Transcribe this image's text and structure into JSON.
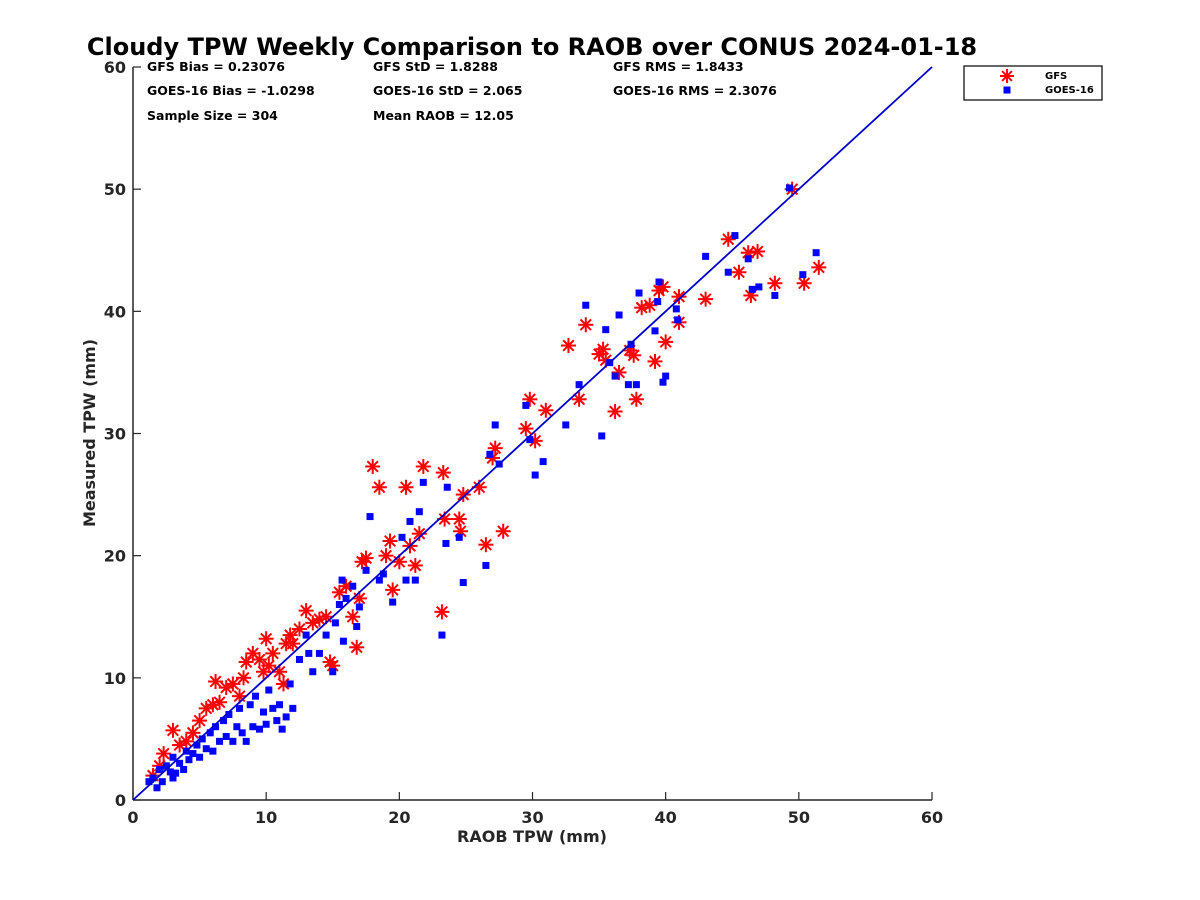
{
  "chart_data": {
    "type": "scatter",
    "title": "Cloudy TPW Weekly Comparison to RAOB over CONUS 2024-01-18",
    "xlabel": "RAOB TPW (mm)",
    "ylabel": "Measured TPW (mm)",
    "xlim": [
      0,
      60
    ],
    "ylim": [
      0,
      60
    ],
    "xticks": [
      "0",
      "10",
      "20",
      "30",
      "40",
      "50",
      "60"
    ],
    "yticks": [
      "0",
      "10",
      "20",
      "30",
      "40",
      "50",
      "60"
    ],
    "grid": false,
    "legend_position": "outside top-right",
    "stats": {
      "gfs_bias": "GFS Bias = 0.23076",
      "gfs_std": "GFS StD = 1.8288",
      "gfs_rms": "GFS RMS = 1.8433",
      "goes_bias": "GOES-16 Bias = -1.0298",
      "goes_std": "GOES-16 StD = 2.065",
      "goes_rms": "GOES-16 RMS = 2.3076",
      "sample_size": "Sample Size = 304",
      "mean_raob": "Mean RAOB = 12.05"
    },
    "reference_line": {
      "x": [
        0,
        60
      ],
      "y": [
        0,
        60
      ],
      "color": "#0000cc"
    },
    "series": [
      {
        "name": "GFS",
        "marker": "asterisk",
        "color": "#ff0000",
        "points": [
          [
            1.5,
            2
          ],
          [
            2,
            2.8
          ],
          [
            2.3,
            3.8
          ],
          [
            3,
            5.7
          ],
          [
            3.5,
            4.5
          ],
          [
            4,
            4.8
          ],
          [
            4.5,
            5.5
          ],
          [
            5,
            6.5
          ],
          [
            5.5,
            7.5
          ],
          [
            6,
            7.8
          ],
          [
            6.2,
            9.7
          ],
          [
            6.5,
            8
          ],
          [
            7,
            9.2
          ],
          [
            7.5,
            9.5
          ],
          [
            8,
            8.5
          ],
          [
            8.3,
            10
          ],
          [
            8.5,
            11.3
          ],
          [
            9,
            12
          ],
          [
            9.5,
            11.5
          ],
          [
            9.8,
            10.5
          ],
          [
            10,
            13.2
          ],
          [
            10.2,
            11
          ],
          [
            10.5,
            12
          ],
          [
            11,
            10.5
          ],
          [
            11.3,
            9.5
          ],
          [
            11.5,
            12.8
          ],
          [
            11.8,
            13.5
          ],
          [
            12,
            12.8
          ],
          [
            12.5,
            14
          ],
          [
            13,
            15.5
          ],
          [
            13.5,
            14.5
          ],
          [
            14,
            14.8
          ],
          [
            14.5,
            15
          ],
          [
            14.8,
            11.3
          ],
          [
            15,
            11
          ],
          [
            15.5,
            17
          ],
          [
            16,
            17.5
          ],
          [
            16.5,
            15
          ],
          [
            17,
            16.5
          ],
          [
            16.8,
            12.5
          ],
          [
            17.2,
            19.5
          ],
          [
            17.5,
            19.8
          ],
          [
            18,
            27.3
          ],
          [
            18.5,
            25.6
          ],
          [
            19,
            20
          ],
          [
            19.3,
            21.2
          ],
          [
            19.5,
            17.2
          ],
          [
            20,
            19.5
          ],
          [
            20.5,
            25.6
          ],
          [
            20.8,
            20.8
          ],
          [
            21.2,
            19.2
          ],
          [
            21.5,
            21.8
          ],
          [
            21.8,
            27.3
          ],
          [
            23.2,
            15.4
          ],
          [
            23.3,
            26.8
          ],
          [
            23.4,
            23
          ],
          [
            24.5,
            23
          ],
          [
            24.6,
            22
          ],
          [
            24.8,
            25
          ],
          [
            26,
            25.6
          ],
          [
            26.5,
            20.9
          ],
          [
            27,
            28
          ],
          [
            27.2,
            28.8
          ],
          [
            27.8,
            22
          ],
          [
            29.5,
            30.4
          ],
          [
            29.8,
            32.8
          ],
          [
            30.2,
            29.4
          ],
          [
            31,
            31.9
          ],
          [
            32.7,
            37.2
          ],
          [
            33.5,
            32.8
          ],
          [
            34,
            38.9
          ],
          [
            35,
            36.5
          ],
          [
            35.3,
            36.9
          ],
          [
            35.5,
            36
          ],
          [
            36.2,
            31.8
          ],
          [
            36.5,
            35
          ],
          [
            37.3,
            36.8
          ],
          [
            37.6,
            36.4
          ],
          [
            37.8,
            32.8
          ],
          [
            38.2,
            40.3
          ],
          [
            38.8,
            40.5
          ],
          [
            39.2,
            35.9
          ],
          [
            39.5,
            41.7
          ],
          [
            39.8,
            42
          ],
          [
            40,
            37.5
          ],
          [
            41,
            41.2
          ],
          [
            41,
            39.1
          ],
          [
            43,
            41
          ],
          [
            44.7,
            45.9
          ],
          [
            45.5,
            43.2
          ],
          [
            46.2,
            44.8
          ],
          [
            46.4,
            41.3
          ],
          [
            46.9,
            44.9
          ],
          [
            48.2,
            42.3
          ],
          [
            49.5,
            50
          ],
          [
            50.4,
            42.3
          ],
          [
            51.5,
            43.6
          ]
        ]
      },
      {
        "name": "GOES-16",
        "marker": "square",
        "color": "#0000ff",
        "points": [
          [
            1.2,
            1.5
          ],
          [
            1.5,
            1.8
          ],
          [
            1.8,
            1
          ],
          [
            2,
            2.5
          ],
          [
            2.2,
            1.5
          ],
          [
            2.5,
            2.8
          ],
          [
            2.8,
            2.3
          ],
          [
            3,
            1.8
          ],
          [
            3,
            3.5
          ],
          [
            3.2,
            2.2
          ],
          [
            3.5,
            3
          ],
          [
            3.8,
            2.5
          ],
          [
            4,
            4
          ],
          [
            4.2,
            3.3
          ],
          [
            4.5,
            3.8
          ],
          [
            4.8,
            4.5
          ],
          [
            5,
            3.5
          ],
          [
            5.2,
            5
          ],
          [
            5.5,
            4.2
          ],
          [
            5.8,
            5.5
          ],
          [
            6,
            4
          ],
          [
            6.2,
            6
          ],
          [
            6.5,
            4.8
          ],
          [
            6.8,
            6.5
          ],
          [
            7,
            5.2
          ],
          [
            7.2,
            7
          ],
          [
            7.5,
            4.8
          ],
          [
            7.8,
            6
          ],
          [
            8,
            7.5
          ],
          [
            8.2,
            5.5
          ],
          [
            8.5,
            4.8
          ],
          [
            8.8,
            7.8
          ],
          [
            9,
            6
          ],
          [
            9.2,
            8.5
          ],
          [
            9.5,
            5.8
          ],
          [
            9.8,
            7.2
          ],
          [
            10,
            6.2
          ],
          [
            10.2,
            9
          ],
          [
            10.5,
            7.5
          ],
          [
            10.8,
            6.5
          ],
          [
            11,
            7.8
          ],
          [
            11.2,
            5.8
          ],
          [
            11.5,
            6.8
          ],
          [
            11.8,
            9.5
          ],
          [
            12,
            7.5
          ],
          [
            12.5,
            11.5
          ],
          [
            13,
            13.5
          ],
          [
            13.2,
            12
          ],
          [
            13.5,
            10.5
          ],
          [
            14,
            12
          ],
          [
            14.5,
            13.5
          ],
          [
            15,
            10.5
          ],
          [
            15.2,
            14.5
          ],
          [
            15.5,
            16
          ],
          [
            15.7,
            18
          ],
          [
            15.8,
            13
          ],
          [
            16,
            16.5
          ],
          [
            16.5,
            17.5
          ],
          [
            16.8,
            14.2
          ],
          [
            17,
            15.8
          ],
          [
            17.5,
            18.8
          ],
          [
            17.8,
            23.2
          ],
          [
            18.5,
            18
          ],
          [
            18.8,
            18.5
          ],
          [
            19.5,
            16.2
          ],
          [
            20.2,
            21.5
          ],
          [
            20.5,
            18
          ],
          [
            20.8,
            22.8
          ],
          [
            21.2,
            18
          ],
          [
            21.5,
            23.6
          ],
          [
            21.8,
            26
          ],
          [
            23.2,
            13.5
          ],
          [
            23.5,
            21
          ],
          [
            23.6,
            25.6
          ],
          [
            24.5,
            21.5
          ],
          [
            24.8,
            17.8
          ],
          [
            26.5,
            19.2
          ],
          [
            26.8,
            28.3
          ],
          [
            27.2,
            30.7
          ],
          [
            27.5,
            27.5
          ],
          [
            29.5,
            32.3
          ],
          [
            29.8,
            29.5
          ],
          [
            30.2,
            26.6
          ],
          [
            30.8,
            27.7
          ],
          [
            32.5,
            30.7
          ],
          [
            33.5,
            34
          ],
          [
            34,
            40.5
          ],
          [
            35.2,
            29.8
          ],
          [
            35.5,
            38.5
          ],
          [
            35.8,
            35.8
          ],
          [
            36.2,
            34.7
          ],
          [
            36.5,
            39.7
          ],
          [
            37.2,
            34
          ],
          [
            37.4,
            37.3
          ],
          [
            37.8,
            34
          ],
          [
            38,
            41.5
          ],
          [
            39.2,
            38.4
          ],
          [
            39.4,
            40.8
          ],
          [
            39.5,
            42.4
          ],
          [
            39.8,
            34.2
          ],
          [
            40,
            34.7
          ],
          [
            40.8,
            40.2
          ],
          [
            40.9,
            39.3
          ],
          [
            43,
            44.5
          ],
          [
            44.7,
            43.2
          ],
          [
            45.2,
            46.2
          ],
          [
            46.2,
            44.3
          ],
          [
            46.5,
            41.8
          ],
          [
            47,
            42
          ],
          [
            48.2,
            41.3
          ],
          [
            49.3,
            50.1
          ],
          [
            50.3,
            43
          ],
          [
            51.3,
            44.8
          ]
        ]
      }
    ]
  }
}
